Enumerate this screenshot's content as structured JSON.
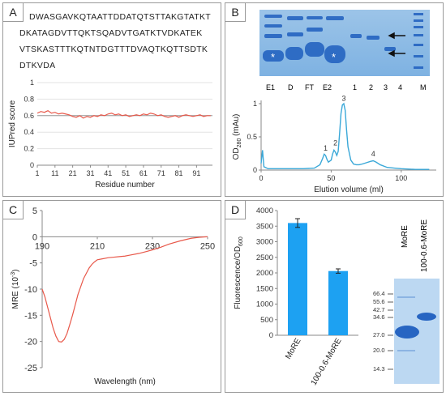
{
  "panels": {
    "A": {
      "label": "A",
      "sequence_lines": [
        "DWASGAVKQTAATTDDATQTSTTAKGTATKT",
        "DKATAGDVTTQKTSQADVTGATKTVDKATEK",
        "VTSKASTTTKQTNTDGTTTDVAQTKQTTSDTK",
        "DTKVDA"
      ]
    },
    "B": {
      "label": "B",
      "gel_lane_labels": [
        "E1",
        "D",
        "FT",
        "E2",
        "1",
        "2",
        "3",
        "4",
        "M"
      ],
      "asterisk": "*"
    },
    "C": {
      "label": "C"
    },
    "D": {
      "label": "D",
      "gel_lane_labels": [
        "MoRE",
        "100-0.6-MoRE"
      ],
      "gel_markers": [
        "66.4",
        "55.6",
        "42.7",
        "34.6",
        "27.0",
        "20.0",
        "14.3"
      ]
    }
  },
  "chart_data": [
    {
      "id": "A",
      "type": "line",
      "xlabel": "Residue number",
      "ylabel": "IUPred score",
      "ylim": [
        0,
        1
      ],
      "yticks": [
        "0",
        "0.2",
        "0.4",
        "0.6",
        "0.8",
        "1"
      ],
      "xticks": [
        "1",
        "11",
        "21",
        "31",
        "41",
        "51",
        "61",
        "71",
        "81",
        "91"
      ],
      "x_range": [
        1,
        100
      ],
      "threshold": 0.6,
      "series": [
        {
          "color": "#e8584a",
          "x": [
            1,
            3,
            5,
            7,
            9,
            11,
            13,
            15,
            17,
            19,
            21,
            23,
            25,
            27,
            29,
            31,
            33,
            35,
            37,
            39,
            41,
            43,
            45,
            47,
            49,
            51,
            53,
            55,
            57,
            59,
            61,
            63,
            65,
            67,
            69,
            71,
            73,
            75,
            77,
            79,
            81,
            83,
            85,
            87,
            89,
            91,
            93,
            95,
            97,
            99
          ],
          "values": [
            0.63,
            0.65,
            0.64,
            0.66,
            0.63,
            0.64,
            0.62,
            0.63,
            0.62,
            0.61,
            0.59,
            0.58,
            0.6,
            0.57,
            0.59,
            0.58,
            0.6,
            0.59,
            0.61,
            0.6,
            0.62,
            0.63,
            0.61,
            0.62,
            0.6,
            0.61,
            0.59,
            0.6,
            0.61,
            0.6,
            0.62,
            0.61,
            0.63,
            0.62,
            0.6,
            0.61,
            0.59,
            0.58,
            0.59,
            0.6,
            0.58,
            0.6,
            0.61,
            0.6,
            0.59,
            0.6,
            0.61,
            0.59,
            0.6,
            0.6
          ]
        }
      ]
    },
    {
      "id": "B",
      "type": "line",
      "xlabel": "Elution volume (ml)",
      "ylabel_main": "OD",
      "ylabel_sub": "280",
      "ylabel_unit": " (mAu)",
      "ylim": [
        0,
        1
      ],
      "xlim": [
        0,
        125
      ],
      "yticks": [
        "0",
        "0.5",
        "1"
      ],
      "xticks": [
        "0",
        "50",
        "100"
      ],
      "peak_labels": [
        {
          "text": "1",
          "x": 46,
          "y": 0.27
        },
        {
          "text": "2",
          "x": 53,
          "y": 0.35
        },
        {
          "text": "3",
          "x": 59,
          "y": 1.02
        },
        {
          "text": "4",
          "x": 80,
          "y": 0.18
        }
      ],
      "series": [
        {
          "color": "#3aa8d8",
          "x": [
            0,
            1,
            2,
            5,
            10,
            20,
            30,
            38,
            42,
            44,
            45,
            46,
            47,
            48,
            50,
            51,
            52,
            53,
            54,
            55,
            56,
            57,
            58,
            59,
            60,
            61,
            62,
            64,
            66,
            68,
            70,
            72,
            75,
            78,
            80,
            82,
            85,
            90,
            95,
            100,
            110,
            120
          ],
          "values": [
            0.1,
            0.3,
            0.05,
            0.02,
            0.02,
            0.02,
            0.02,
            0.03,
            0.08,
            0.18,
            0.24,
            0.22,
            0.16,
            0.12,
            0.15,
            0.24,
            0.3,
            0.27,
            0.22,
            0.28,
            0.55,
            0.85,
            0.98,
            1.0,
            0.9,
            0.6,
            0.35,
            0.15,
            0.09,
            0.08,
            0.08,
            0.09,
            0.11,
            0.13,
            0.14,
            0.12,
            0.08,
            0.04,
            0.03,
            0.02,
            0.01,
            0.01
          ]
        }
      ]
    },
    {
      "id": "C",
      "type": "line",
      "xlabel": "Wavelength (nm)",
      "ylabel_main": "MRE (10",
      "ylabel_sup": "-3",
      "ylabel_end": ")",
      "xlim": [
        190,
        250
      ],
      "ylim": [
        -25,
        5
      ],
      "yticks": [
        "5",
        "0",
        "-5",
        "-10",
        "-15",
        "-20",
        "-25"
      ],
      "xticks": [
        "190",
        "210",
        "230",
        "250"
      ],
      "series": [
        {
          "color": "#e8584a",
          "x": [
            190,
            191,
            192,
            193,
            194,
            195,
            196,
            197,
            198,
            199,
            200,
            201,
            202,
            203,
            204,
            205,
            206,
            207,
            208,
            209,
            210,
            212,
            214,
            216,
            218,
            220,
            222,
            225,
            228,
            230,
            233,
            236,
            240,
            244,
            247,
            250
          ],
          "values": [
            -10,
            -11.5,
            -13.5,
            -15.5,
            -17.5,
            -19,
            -20,
            -20.1,
            -19.6,
            -18.5,
            -16.8,
            -15,
            -13,
            -11,
            -9.5,
            -8,
            -7,
            -6,
            -5.3,
            -4.8,
            -4.4,
            -4.2,
            -4.0,
            -3.9,
            -3.8,
            -3.7,
            -3.5,
            -3.2,
            -2.8,
            -2.5,
            -2.0,
            -1.4,
            -0.8,
            -0.3,
            -0.1,
            0
          ]
        }
      ]
    },
    {
      "id": "D",
      "type": "bar",
      "ylabel_main": "Fluorescence/OD",
      "ylabel_sub": "600",
      "ylim": [
        0,
        4000
      ],
      "yticks": [
        "0",
        "500",
        "1000",
        "1500",
        "2000",
        "2500",
        "3000",
        "3500",
        "4000"
      ],
      "categories": [
        "MoRE",
        "100-0.6-MoRE"
      ],
      "values": [
        3600,
        2060
      ],
      "errors": [
        140,
        70
      ],
      "color": "#1da1f2"
    }
  ]
}
